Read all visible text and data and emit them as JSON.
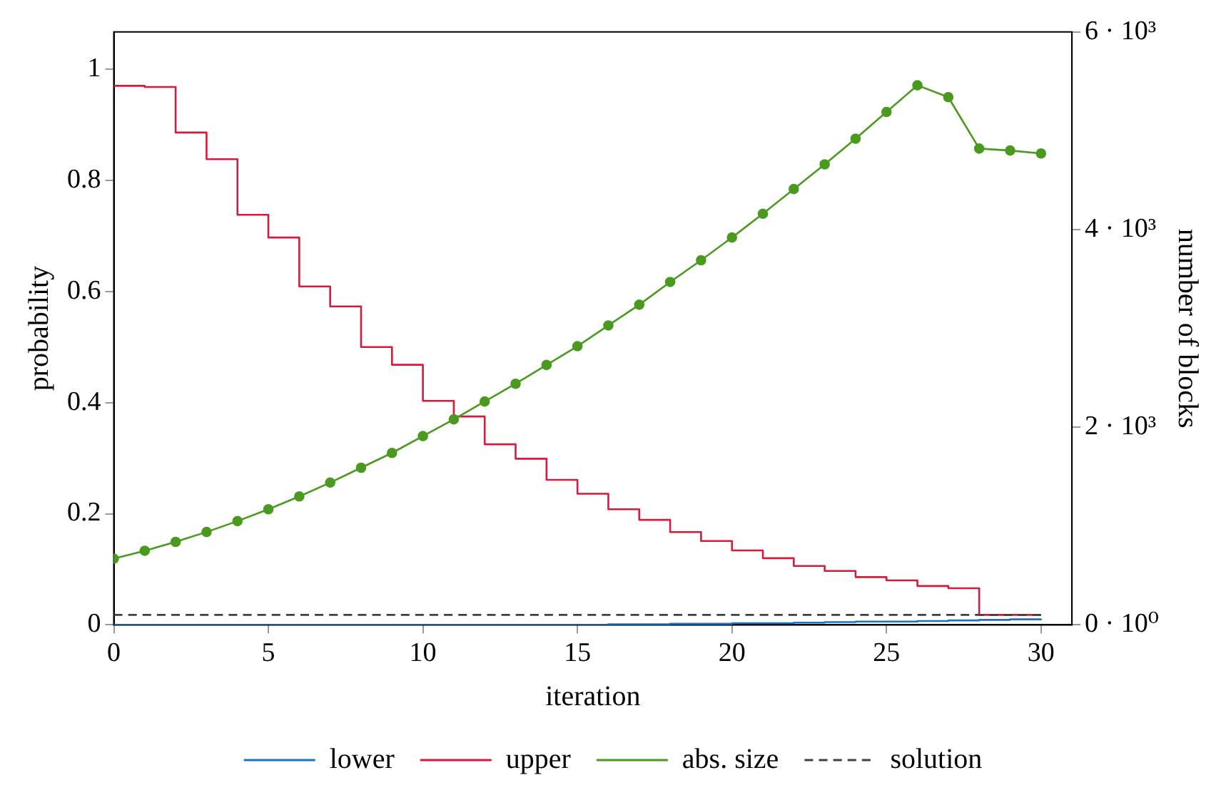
{
  "chart_data": {
    "type": "line",
    "xlabel": "iteration",
    "ylabel": "probability",
    "y2label": "number of blocks",
    "x": [
      0,
      1,
      2,
      3,
      4,
      5,
      6,
      7,
      8,
      9,
      10,
      11,
      12,
      13,
      14,
      15,
      16,
      17,
      18,
      19,
      20,
      21,
      22,
      23,
      24,
      25,
      26,
      27,
      28,
      29,
      30
    ],
    "series": [
      {
        "name": "lower",
        "type": "step",
        "color": "#1a73c6",
        "marker": "none",
        "line_style": "solid",
        "values": [
          0,
          0,
          0,
          0,
          0,
          0,
          0,
          0,
          0,
          0,
          0,
          0,
          0,
          0,
          0,
          0,
          0.001,
          0.001,
          0.002,
          0.002,
          0.003,
          0.003,
          0.004,
          0.005,
          0.006,
          0.006,
          0.007,
          0.008,
          0.009,
          0.01,
          0.011
        ]
      },
      {
        "name": "upper",
        "type": "step",
        "color": "#d7193c",
        "marker": "none",
        "line_style": "solid",
        "values": [
          0.97,
          0.968,
          0.886,
          0.838,
          0.738,
          0.697,
          0.609,
          0.573,
          0.5,
          0.468,
          0.403,
          0.375,
          0.325,
          0.299,
          0.261,
          0.236,
          0.208,
          0.189,
          0.167,
          0.151,
          0.134,
          0.12,
          0.106,
          0.097,
          0.086,
          0.08,
          0.07,
          0.066,
          0.018,
          0.018,
          0.018
        ]
      },
      {
        "name": "abs. size",
        "type": "line",
        "axis": "y2",
        "color": "#4a9a1f",
        "marker": "circle",
        "line_style": "solid",
        "values": [
          670,
          750,
          840,
          940,
          1050,
          1170,
          1300,
          1440,
          1590,
          1740,
          1910,
          2080,
          2260,
          2440,
          2630,
          2820,
          3030,
          3240,
          3470,
          3690,
          3920,
          4160,
          4410,
          4660,
          4920,
          5190,
          5460,
          5340,
          4820,
          4800,
          4770
        ]
      },
      {
        "name": "solution",
        "type": "line",
        "color": "#404040",
        "marker": "none",
        "line_style": "dashed",
        "x": [
          0,
          30
        ],
        "values": [
          0.018,
          0.018
        ]
      }
    ],
    "xlim": [
      0,
      31
    ],
    "xticks": [
      0,
      5,
      10,
      15,
      20,
      25,
      30
    ],
    "ylim": [
      0,
      1.067
    ],
    "yticks": [
      0,
      0.2,
      0.4,
      0.6,
      0.8,
      1
    ],
    "y2lim": [
      0,
      6000
    ],
    "y2ticks": [
      {
        "value": 0,
        "label": "0 · 10⁰"
      },
      {
        "value": 2000,
        "label": "2 · 10³"
      },
      {
        "value": 4000,
        "label": "4 · 10³"
      },
      {
        "value": 6000,
        "label": "6 · 10³"
      }
    ],
    "grid": false,
    "legend": "bottom"
  }
}
